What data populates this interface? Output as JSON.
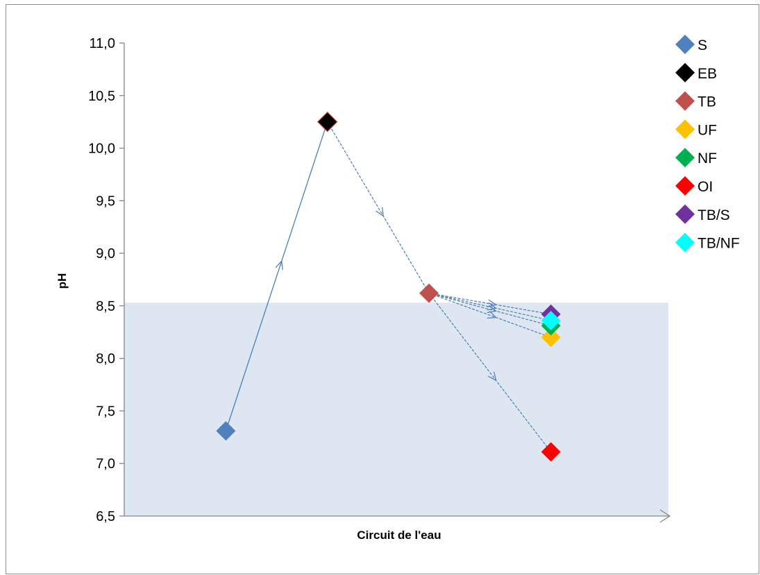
{
  "chart_data": {
    "type": "scatter",
    "xlabel": "Circuit de l'eau",
    "ylabel": "pH",
    "ylim": [
      6.5,
      11.0
    ],
    "y_ticks": [
      "6,5",
      "7,0",
      "7,5",
      "8,0",
      "8,5",
      "9,0",
      "9,5",
      "10,0",
      "10,5",
      "11,0"
    ],
    "x_gridlines": false,
    "y_gridlines": false,
    "legend_position": "top-right",
    "band": {
      "ymin": 6.5,
      "ymax": 8.53,
      "color": "#dee6f1"
    },
    "series": [
      {
        "name": "S",
        "x": 1,
        "y": 7.31,
        "color": "#4f81bd"
      },
      {
        "name": "EB",
        "x": 2,
        "y": 10.25,
        "color": "#000000"
      },
      {
        "name": "TB",
        "x": 3,
        "y": 8.62,
        "color": "#c0504d"
      },
      {
        "name": "UF",
        "x": 4.2,
        "y": 8.2,
        "color": "#ffc000"
      },
      {
        "name": "NF",
        "x": 4.2,
        "y": 8.31,
        "color": "#00b050"
      },
      {
        "name": "OI",
        "x": 4.2,
        "y": 7.11,
        "color": "#ff0000"
      },
      {
        "name": "TB/S",
        "x": 4.2,
        "y": 8.42,
        "color": "#7030a0"
      },
      {
        "name": "TB/NF",
        "x": 4.2,
        "y": 8.36,
        "color": "#00ffff"
      }
    ],
    "connections": [
      {
        "from": "S",
        "to": "EB",
        "style": "solid"
      },
      {
        "from": "EB",
        "to": "TB",
        "style": "dashed"
      },
      {
        "from": "TB",
        "to": "OI",
        "style": "dashed"
      },
      {
        "from": "TB",
        "to": "TB/S",
        "style": "dashed"
      },
      {
        "from": "TB",
        "to": "TB/NF",
        "style": "dashed"
      },
      {
        "from": "TB",
        "to": "NF",
        "style": "dashed"
      },
      {
        "from": "TB",
        "to": "UF",
        "style": "dashed"
      }
    ],
    "line_color": "#4a7ebb"
  }
}
